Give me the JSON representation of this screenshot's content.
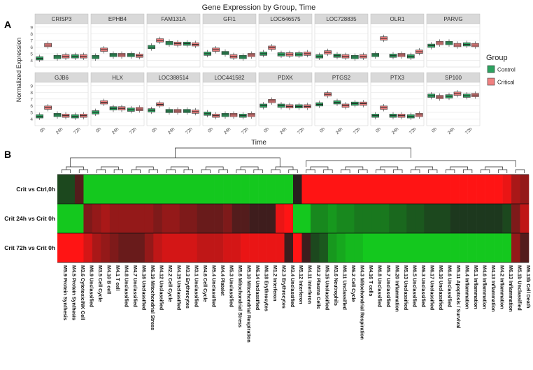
{
  "panel_labels": {
    "a": "A",
    "b": "B"
  },
  "chart_data": [
    {
      "type": "boxplot",
      "title": "Gene Expression by Group, Time",
      "xlabel": "Time",
      "ylabel": "Normalized Expression",
      "categories": [
        "0h",
        "24h",
        "72h"
      ],
      "ylim": [
        3,
        9.5
      ],
      "yticks": [
        4,
        5,
        6,
        7,
        8,
        9
      ],
      "grid": true,
      "legend": {
        "title": "Group",
        "placement": "right",
        "entries": [
          {
            "name": "Control",
            "color": "#2ca25f"
          },
          {
            "name": "Critical",
            "color": "#f08080"
          }
        ]
      },
      "facets": [
        {
          "gene": "CRISP3",
          "control": [
            4.3,
            4.5,
            4.6
          ],
          "critical": [
            6.3,
            4.6,
            4.6
          ]
        },
        {
          "gene": "EPHB4",
          "control": [
            4.5,
            4.8,
            4.8
          ],
          "critical": [
            5.6,
            4.8,
            4.7
          ]
        },
        {
          "gene": "FAM131A",
          "control": [
            6.0,
            6.6,
            6.5
          ],
          "critical": [
            7.0,
            6.5,
            6.4
          ]
        },
        {
          "gene": "GFI1",
          "control": [
            5.0,
            5.1,
            4.5
          ],
          "critical": [
            5.6,
            4.6,
            4.8
          ]
        },
        {
          "gene": "LOC646575",
          "control": [
            5.0,
            4.9,
            4.9
          ],
          "critical": [
            5.9,
            4.9,
            5.0
          ]
        },
        {
          "gene": "LOC728835",
          "control": [
            4.6,
            4.7,
            4.5
          ],
          "critical": [
            5.2,
            4.6,
            4.6
          ]
        },
        {
          "gene": "OLR1",
          "control": [
            4.8,
            4.7,
            4.6
          ],
          "critical": [
            7.3,
            4.8,
            5.3
          ]
        },
        {
          "gene": "PARVG",
          "control": [
            6.2,
            6.6,
            6.4
          ],
          "critical": [
            6.6,
            6.3,
            6.3
          ]
        },
        {
          "gene": "GJB6",
          "control": [
            4.4,
            4.6,
            4.4
          ],
          "critical": [
            5.7,
            4.5,
            4.5
          ]
        },
        {
          "gene": "HLX",
          "control": [
            5.0,
            5.6,
            5.4
          ],
          "critical": [
            6.5,
            5.6,
            5.5
          ]
        },
        {
          "gene": "LOC388514",
          "control": [
            5.3,
            5.2,
            5.2
          ],
          "critical": [
            6.2,
            5.2,
            5.1
          ]
        },
        {
          "gene": "LOC441582",
          "control": [
            4.8,
            4.6,
            4.5
          ],
          "critical": [
            4.5,
            4.6,
            4.6
          ]
        },
        {
          "gene": "PDXK",
          "control": [
            6.0,
            6.0,
            5.9
          ],
          "critical": [
            6.7,
            5.9,
            5.9
          ]
        },
        {
          "gene": "PTGS2",
          "control": [
            6.2,
            6.5,
            6.3
          ],
          "critical": [
            7.7,
            6.0,
            6.3
          ]
        },
        {
          "gene": "PTX3",
          "control": [
            4.5,
            4.5,
            4.4
          ],
          "critical": [
            5.7,
            4.5,
            4.6
          ]
        },
        {
          "gene": "SP100",
          "control": [
            7.5,
            7.4,
            7.5
          ],
          "critical": [
            7.3,
            7.8,
            7.6
          ]
        }
      ]
    },
    {
      "type": "heatmap",
      "rows": [
        "Crit vs Ctrl,0h",
        "Crit 24h vs Crit 0h",
        "Crit 72h vs Crit 0h"
      ],
      "columns": [
        {
          "id": "M5.9",
          "label": "Protein Synthesis"
        },
        {
          "id": "M4.5",
          "label": "Protein Synthesis"
        },
        {
          "id": "M3.6",
          "label": "Cytotoxic/NK Cell"
        },
        {
          "id": "M6.9",
          "label": "Unclassified"
        },
        {
          "id": "M3.5",
          "label": "Cell Cycle"
        },
        {
          "id": "M4.10",
          "label": "B cell"
        },
        {
          "id": "M4.1",
          "label": "T cell"
        },
        {
          "id": "M4.8",
          "label": "Unclassified"
        },
        {
          "id": "M4.7",
          "label": "Unclassified"
        },
        {
          "id": "M6.16",
          "label": "Unclassified"
        },
        {
          "id": "M6.19",
          "label": "Mitochondrial Stress"
        },
        {
          "id": "M4.12",
          "label": "Unclassified"
        },
        {
          "id": "M2.2",
          "label": "Cell Cycle"
        },
        {
          "id": "M4.15",
          "label": "Unclassified"
        },
        {
          "id": "M3.3",
          "label": "Erythrocytes"
        },
        {
          "id": "M3.1",
          "label": "Unclassified"
        },
        {
          "id": "M4.6",
          "label": "Cell Cycle"
        },
        {
          "id": "M5.4",
          "label": "Unclassified"
        },
        {
          "id": "M4.4",
          "label": "Platelet"
        },
        {
          "id": "M5.3",
          "label": "Unclassified"
        },
        {
          "id": "M5.6",
          "label": "Mitochondrial Stress"
        },
        {
          "id": "M5.10",
          "label": "Mitochondrial Respiration"
        },
        {
          "id": "M6.14",
          "label": "Unclassified"
        },
        {
          "id": "M6.18",
          "label": "Erythrocytes"
        },
        {
          "id": "M1.2",
          "label": "Interferon"
        },
        {
          "id": "M2.3",
          "label": "Erythrocytes"
        },
        {
          "id": "M3.4",
          "label": "Unclassified"
        },
        {
          "id": "M5.12",
          "label": "Interferon"
        },
        {
          "id": "M4.11",
          "label": "Interferon"
        },
        {
          "id": "M3.2",
          "label": "Plasma Cells"
        },
        {
          "id": "M5.15",
          "label": "Unclassified"
        },
        {
          "id": "M3.6",
          "label": "Neutrophils"
        },
        {
          "id": "M6.11",
          "label": "Unclassified"
        },
        {
          "id": "M6.2",
          "label": "Cell Cycle"
        },
        {
          "id": "M4.3",
          "label": "Mitochondrial Respiration"
        },
        {
          "id": "M4.16",
          "label": "T cells"
        },
        {
          "id": "M6.8",
          "label": "Unclassified"
        },
        {
          "id": "M5.7",
          "label": "Unclassified"
        },
        {
          "id": "M6.20",
          "label": "Inflammation"
        },
        {
          "id": "M5.13",
          "label": "Unclassified"
        },
        {
          "id": "M6.5",
          "label": "Unclassified"
        },
        {
          "id": "M6.3",
          "label": "Unclassified"
        },
        {
          "id": "M6.17",
          "label": "Unclassified"
        },
        {
          "id": "M6.10",
          "label": "Unclassified"
        },
        {
          "id": "M6.6",
          "label": "Unclassified"
        },
        {
          "id": "M5.11",
          "label": "Apoptosis / Survival"
        },
        {
          "id": "M6.4",
          "label": "Inflammation"
        },
        {
          "id": "M5.1",
          "label": "Inflammation"
        },
        {
          "id": "M4.6",
          "label": "Inflammation"
        },
        {
          "id": "M4.13",
          "label": "Inflammation"
        },
        {
          "id": "M4.2",
          "label": "Inflammation"
        },
        {
          "id": "M6.13",
          "label": "Inflammation"
        },
        {
          "id": "M5.1b",
          "label": "Unclassified"
        },
        {
          "id": "M6.13b",
          "label": "Cell Death"
        }
      ],
      "values": [
        [
          -0.2,
          -0.2,
          0.2,
          -1,
          -1,
          -1,
          -1,
          -1,
          -1,
          -1,
          -1,
          -1,
          -1,
          -1,
          -1,
          -1,
          -1,
          -1,
          -1,
          -1,
          -1,
          -1,
          -1,
          -1,
          -1,
          -1,
          -1,
          0,
          1,
          1,
          1,
          1,
          1,
          1,
          1,
          1,
          1,
          1,
          1,
          1,
          1,
          1,
          1,
          1,
          1,
          1,
          1,
          1,
          1,
          1,
          1,
          0.9,
          0.6,
          0.5
        ],
        [
          -1,
          -1,
          -1,
          0.4,
          0.5,
          0.6,
          0.5,
          0.5,
          0.5,
          0.5,
          0.5,
          0.4,
          0.5,
          0.5,
          0.4,
          0.4,
          0.3,
          0.3,
          0.3,
          0.4,
          0.2,
          0.2,
          0.1,
          0.1,
          0.1,
          0.9,
          1,
          -1,
          -1,
          -0.6,
          -0.6,
          -0.7,
          -0.6,
          -0.6,
          -0.5,
          -0.5,
          -0.5,
          -0.5,
          -0.4,
          -0.4,
          -0.3,
          -0.3,
          -0.2,
          -0.2,
          -0.2,
          -0.1,
          -0.1,
          -0.1,
          -0.1,
          -0.1,
          -0.1,
          -0.2,
          0.4,
          0.7
        ],
        [
          1,
          1,
          1,
          0.8,
          0.6,
          0.5,
          0.4,
          0.3,
          0.3,
          0.3,
          0.5,
          0.7,
          0.8,
          0.8,
          0.8,
          0.8,
          0.7,
          0.7,
          0.7,
          0.8,
          0.8,
          0.9,
          0.9,
          0.9,
          0.9,
          0.9,
          0.1,
          1,
          0.1,
          -0.2,
          -0.3,
          -0.7,
          -0.8,
          -0.9,
          -0.9,
          -1,
          -1,
          -1,
          -1,
          -1,
          -1,
          -1,
          -1,
          -1,
          -1,
          -1,
          -1,
          -1,
          -1,
          -1,
          -1,
          -1,
          0.5,
          0.2
        ]
      ]
    }
  ]
}
